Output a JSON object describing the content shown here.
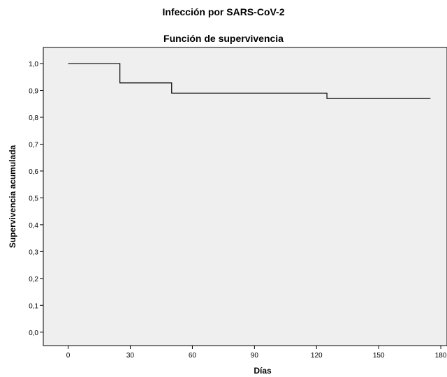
{
  "title": "Infección por SARS-CoV-2",
  "chart_data": {
    "type": "line",
    "step": true,
    "title": "Función de supervivencia",
    "xlabel": "Días",
    "ylabel": "Supervivencia acumulada",
    "xlim": [
      -12,
      183
    ],
    "ylim": [
      -0.05,
      1.06
    ],
    "x_ticks": [
      0,
      30,
      60,
      90,
      120,
      150,
      180
    ],
    "x_tick_labels": [
      "0",
      "30",
      "60",
      "90",
      "120",
      "150",
      "180"
    ],
    "y_ticks": [
      0,
      0.1,
      0.2,
      0.3,
      0.4,
      0.5,
      0.6,
      0.7,
      0.8,
      0.9,
      1.0
    ],
    "y_tick_labels": [
      "0,0",
      "0,1",
      "0,2",
      "0,3",
      "0,4",
      "0,5",
      "0,6",
      "0,7",
      "0,8",
      "0,9",
      "1,0"
    ],
    "grid": false,
    "series": [
      {
        "x": [
          0,
          25,
          50,
          125,
          175
        ],
        "y": [
          1.0,
          0.928,
          0.89,
          0.87,
          0.87
        ]
      }
    ]
  },
  "colors": {
    "plot_background": "#efefef",
    "line": "#000000"
  }
}
